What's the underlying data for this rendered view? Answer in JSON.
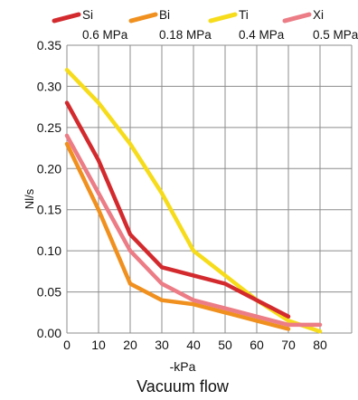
{
  "chart_data": {
    "type": "line",
    "title": "Vacuum flow",
    "xlabel": "-kPa",
    "ylabel": "Nl/s",
    "xlim": [
      0,
      90
    ],
    "ylim": [
      0,
      0.35
    ],
    "x_ticks": [
      0,
      10,
      20,
      30,
      40,
      50,
      60,
      70,
      80
    ],
    "y_ticks": [
      "0.00",
      "0.05",
      "0.10",
      "0.15",
      "0.20",
      "0.25",
      "0.30",
      "0.35"
    ],
    "grid": true,
    "legend_position": "top",
    "series": [
      {
        "name": "Si",
        "sublabel": "0.6 MPa",
        "color": "#d32a2e",
        "points": [
          [
            0,
            0.28
          ],
          [
            10,
            0.21
          ],
          [
            20,
            0.12
          ],
          [
            30,
            0.08
          ],
          [
            40,
            0.07
          ],
          [
            50,
            0.06
          ],
          [
            60,
            0.04
          ],
          [
            70,
            0.02
          ]
        ]
      },
      {
        "name": "Bi",
        "sublabel": "0.18 MPa",
        "color": "#f0901e",
        "points": [
          [
            0,
            0.23
          ],
          [
            10,
            0.15
          ],
          [
            20,
            0.06
          ],
          [
            30,
            0.04
          ],
          [
            40,
            0.035
          ],
          [
            50,
            0.025
          ],
          [
            60,
            0.015
          ],
          [
            70,
            0.005
          ]
        ]
      },
      {
        "name": "Ti",
        "sublabel": "0.4 MPa",
        "color": "#f6dc1a",
        "points": [
          [
            0,
            0.32
          ],
          [
            10,
            0.28
          ],
          [
            20,
            0.23
          ],
          [
            30,
            0.17
          ],
          [
            40,
            0.1
          ],
          [
            50,
            0.07
          ],
          [
            60,
            0.04
          ],
          [
            70,
            0.015
          ],
          [
            80,
            0.002
          ]
        ]
      },
      {
        "name": "Xi",
        "sublabel": "0.5 MPa",
        "color": "#ec7c85",
        "points": [
          [
            0,
            0.24
          ],
          [
            10,
            0.17
          ],
          [
            20,
            0.1
          ],
          [
            30,
            0.06
          ],
          [
            40,
            0.04
          ],
          [
            50,
            0.03
          ],
          [
            60,
            0.02
          ],
          [
            70,
            0.01
          ],
          [
            80,
            0.01
          ]
        ]
      }
    ]
  }
}
